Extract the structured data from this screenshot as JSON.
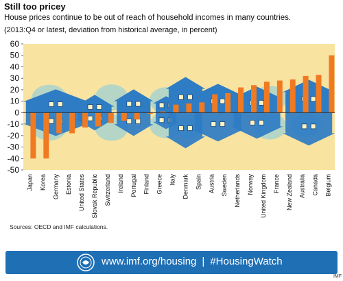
{
  "header": {
    "title": "Still too pricey",
    "subtitle": "House prices continue to be out of reach of household incomes in many countries.",
    "note": "(2013:Q4 or latest, deviation from historical average, in percent)"
  },
  "chart_data": {
    "type": "bar",
    "categories": [
      "Japan",
      "Korea",
      "Germany",
      "Estonia",
      "United States",
      "Slovak Republic",
      "Switzerland",
      "Ireland",
      "Portugal",
      "Finland",
      "Greece",
      "Italy",
      "Denmark",
      "Spain",
      "Austria",
      "Sweden",
      "Netherlands",
      "Norway",
      "United Kingdom",
      "France",
      "New Zealand",
      "Australia",
      "Canada",
      "Belgium"
    ],
    "values": [
      -40,
      -40,
      -18,
      -18,
      -13,
      -12,
      -9,
      -7,
      -6,
      -1,
      1,
      7,
      8,
      9,
      16,
      17,
      22,
      24,
      27,
      28,
      29,
      32,
      33,
      50
    ],
    "ylim": [
      -50,
      60
    ],
    "yticks": [
      -50,
      -40,
      -30,
      -20,
      -10,
      0,
      10,
      20,
      30,
      40,
      50,
      60
    ],
    "colors": {
      "bar": "#f07a22",
      "background": "#f8e3a0",
      "house": "#2e7cc4",
      "house_dark": "#16457a",
      "tree": "#b5d6c6",
      "zero_line": "#333333"
    }
  },
  "sources": "Sources: OECD and IMF calculations.",
  "footer": {
    "url": "www.imf.org/housing",
    "separator": "|",
    "hashtag": "#HousingWatch",
    "logo_icon": "imf-seal-icon",
    "background": "#1f6fb5"
  },
  "imf_tag": "IMF"
}
